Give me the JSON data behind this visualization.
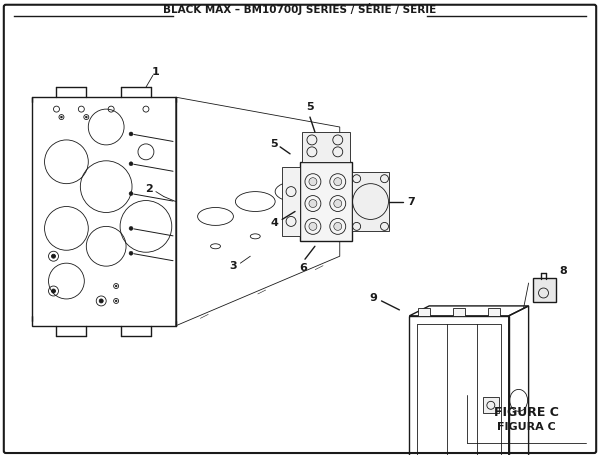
{
  "title": "BLACK MAX – BM10700J SERIES / SÉRIE / SERIE",
  "figure_label": "FIGURE C",
  "figure_label2": "FIGURA C",
  "bg_color": "#ffffff",
  "lc": "#1a1a1a",
  "lw_main": 1.0,
  "lw_thin": 0.6,
  "lw_heavy": 1.3
}
